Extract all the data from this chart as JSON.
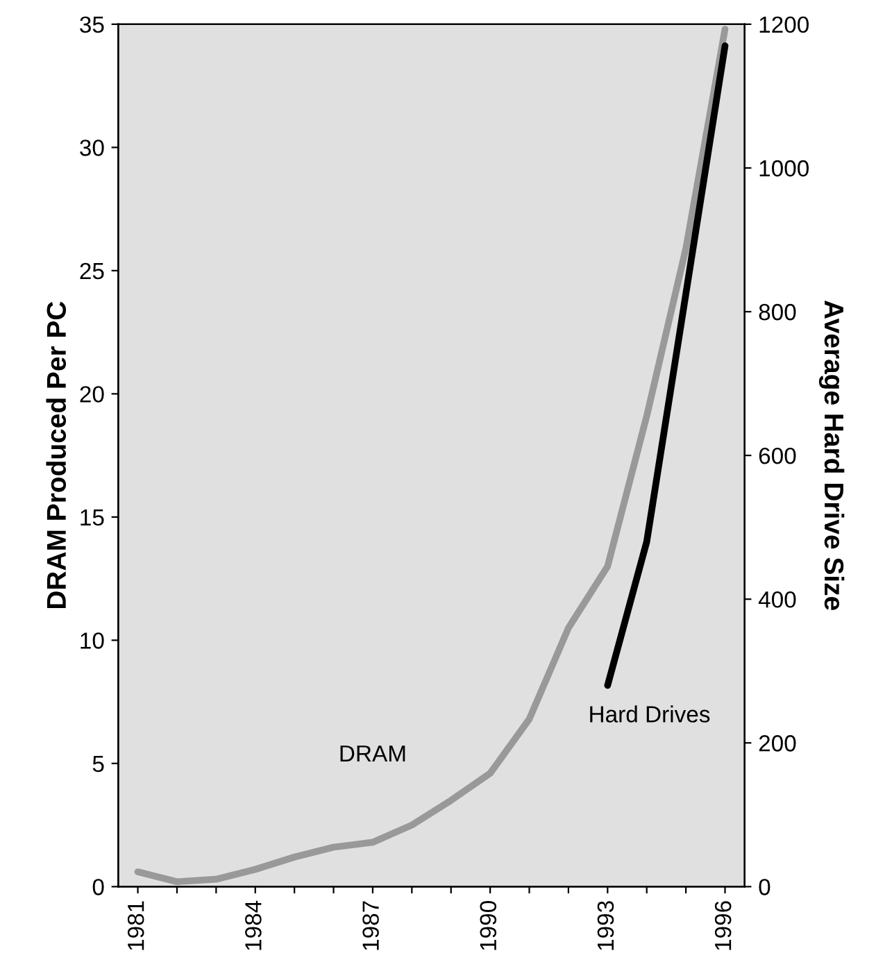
{
  "chart_data": {
    "type": "line",
    "ylabel": "DRAM Produced Per PC",
    "y2label": "Average Hard Drive Size",
    "xlim": [
      1980.5,
      1996.5
    ],
    "xticks": [
      1981,
      {
        "value": 1982,
        "label": null
      },
      {
        "value": 1983,
        "label": null
      },
      1984,
      {
        "value": 1985,
        "label": null
      },
      {
        "value": 1986,
        "label": null
      },
      1987,
      {
        "value": 1988,
        "label": null
      },
      {
        "value": 1989,
        "label": null
      },
      1990,
      {
        "value": 1991,
        "label": null
      },
      {
        "value": 1992,
        "label": null
      },
      1993,
      {
        "value": 1994,
        "label": null
      },
      {
        "value": 1995,
        "label": null
      },
      1996
    ],
    "ylim": [
      0,
      35
    ],
    "yticks": [
      0,
      5,
      10,
      15,
      20,
      25,
      30,
      35
    ],
    "y2lim": [
      0,
      1200
    ],
    "y2ticks": [
      0,
      200,
      400,
      600,
      800,
      1000,
      1200
    ],
    "series": [
      {
        "name": "DRAM",
        "color": "#999999",
        "x": [
          1981,
          1982,
          1983,
          1984,
          1985,
          1986,
          1987,
          1988,
          1989,
          1990,
          1991,
          1992,
          1993,
          1994,
          1995,
          1996
        ],
        "values": [
          0.6,
          0.2,
          0.3,
          0.7,
          1.2,
          1.6,
          1.8,
          2.5,
          3.5,
          4.6,
          6.8,
          10.5,
          13.0,
          19.1,
          25.9,
          34.8
        ]
      },
      {
        "name": "Hard Drives",
        "color": "#000000",
        "axis": "y2",
        "x": [
          1993,
          1994,
          1996
        ],
        "values": [
          280,
          480,
          1170
        ]
      }
    ],
    "grid": false,
    "legend": false,
    "marker": "none",
    "line_style": "solid"
  }
}
